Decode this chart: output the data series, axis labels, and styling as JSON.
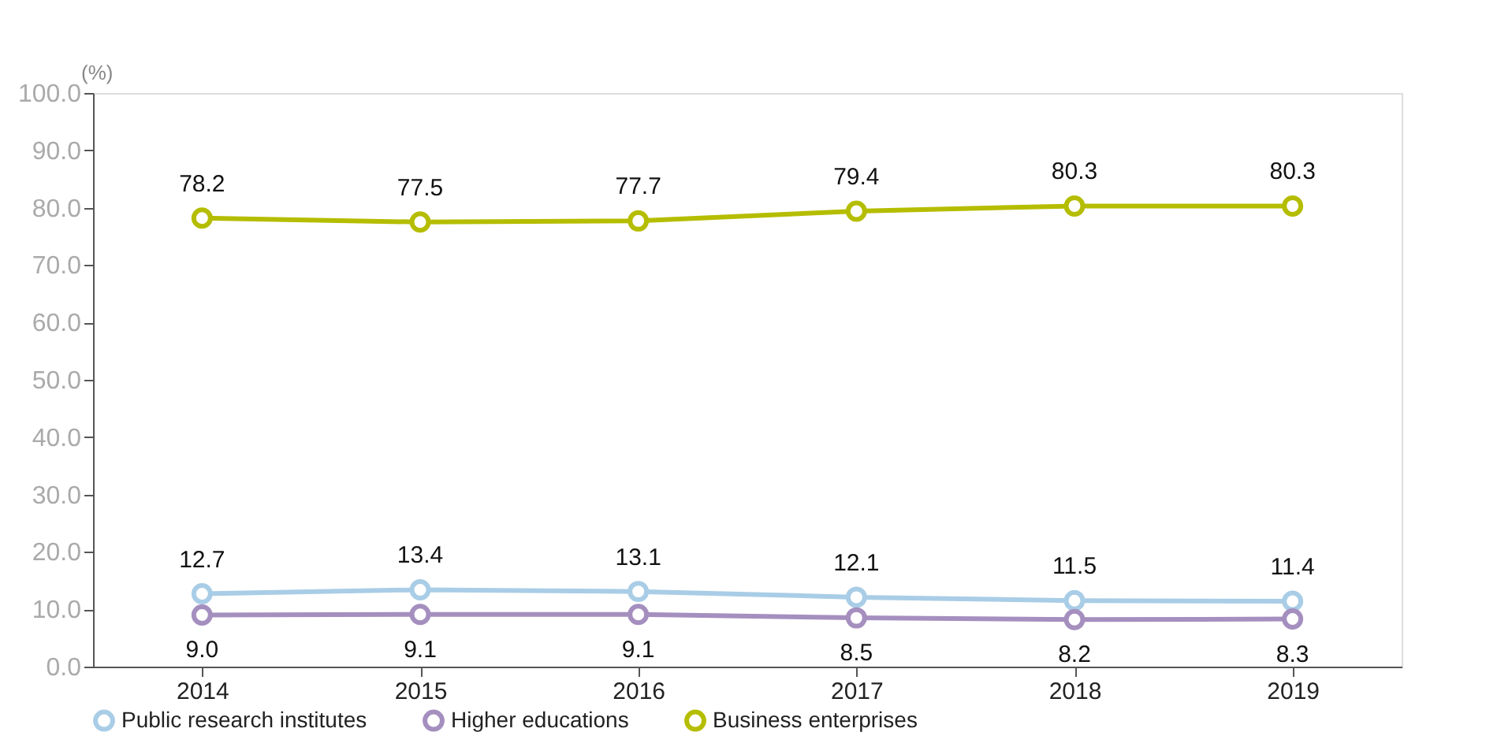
{
  "chart_data": {
    "type": "line",
    "ylabel": "(%)",
    "categories": [
      "2014",
      "2015",
      "2016",
      "2017",
      "2018",
      "2019"
    ],
    "series": [
      {
        "name": "Public research institutes",
        "color": "#a9cde6",
        "values": [
          12.7,
          13.4,
          13.1,
          12.1,
          11.5,
          11.4
        ],
        "value_labels": [
          "12.7",
          "13.4",
          "13.1",
          "12.1",
          "11.5",
          "11.4"
        ]
      },
      {
        "name": "Higher educations",
        "color": "#a58fbf",
        "values": [
          9.0,
          9.1,
          9.1,
          8.5,
          8.2,
          8.3
        ],
        "value_labels": [
          "9.0",
          "9.1",
          "9.1",
          "8.5",
          "8.2",
          "8.3"
        ]
      },
      {
        "name": "Business enterprises",
        "color": "#b5bd00",
        "values": [
          78.2,
          77.5,
          77.7,
          79.4,
          80.3,
          80.3
        ],
        "value_labels": [
          "78.2",
          "77.5",
          "77.7",
          "79.4",
          "80.3",
          "80.3"
        ]
      }
    ],
    "ylim": [
      0,
      100
    ],
    "yticks": [
      {
        "value": 0,
        "label": "0.0"
      },
      {
        "value": 10,
        "label": "10.0"
      },
      {
        "value": 20,
        "label": "20.0"
      },
      {
        "value": 30,
        "label": "30.0"
      },
      {
        "value": 40,
        "label": "40.0"
      },
      {
        "value": 50,
        "label": "50.0"
      },
      {
        "value": 60,
        "label": "60.0"
      },
      {
        "value": 70,
        "label": "70.0"
      },
      {
        "value": 80,
        "label": "80.0"
      },
      {
        "value": 90,
        "label": "90.0"
      },
      {
        "value": 100,
        "label": "100.0"
      }
    ],
    "marker": "circle",
    "line_style": "solid",
    "legend": "bottom",
    "grid": false
  }
}
